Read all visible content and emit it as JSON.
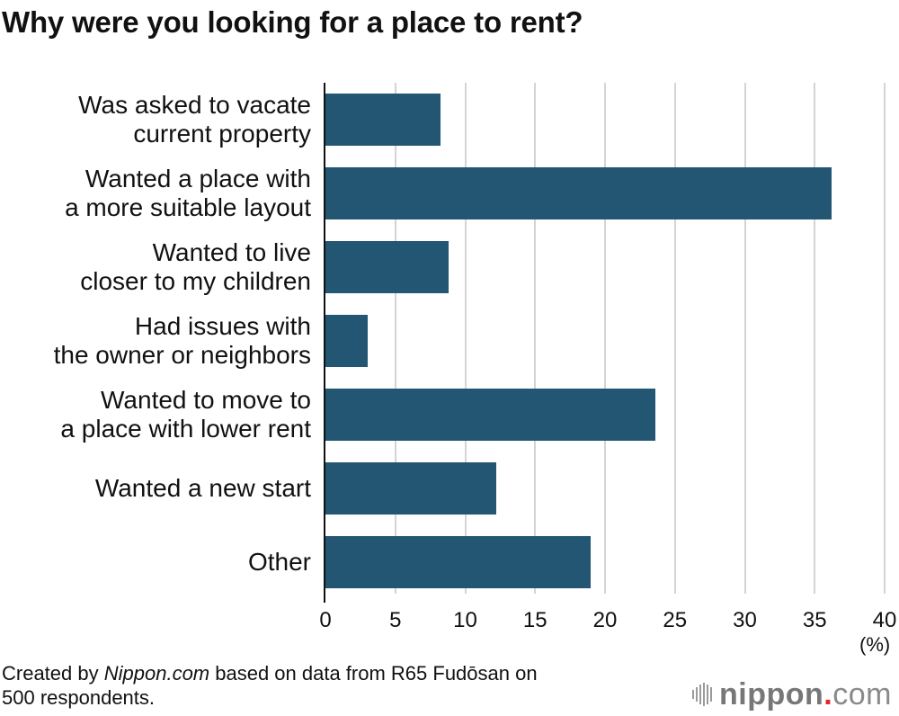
{
  "chart_data": {
    "type": "bar",
    "orientation": "horizontal",
    "title": "Why were you looking for a place to rent?",
    "categories": [
      "Was asked to vacate current property",
      "Wanted a place with a more suitable layout",
      "Wanted to live closer to my children",
      "Had issues with the owner or neighbors",
      "Wanted to move to a place with lower rent",
      "Wanted a new start",
      "Other"
    ],
    "category_lines": [
      [
        "Was asked to vacate",
        "current property"
      ],
      [
        "Wanted a place with",
        "a more suitable layout"
      ],
      [
        "Wanted to live",
        "closer to my children"
      ],
      [
        "Had issues with",
        "the owner or neighbors"
      ],
      [
        "Wanted to move to",
        "a place with lower rent"
      ],
      [
        "Wanted a new start"
      ],
      [
        "Other"
      ]
    ],
    "values": [
      8.2,
      36.2,
      8.8,
      3.0,
      23.6,
      12.2,
      19.0
    ],
    "xlabel": "(%)",
    "ylabel": "",
    "xlim": [
      0,
      40
    ],
    "xticks": [
      "0",
      "5",
      "10",
      "15",
      "20",
      "25",
      "30",
      "35",
      "40"
    ],
    "grid": true,
    "legend": null,
    "bar_color": "#235673"
  },
  "header": {
    "title": "Why were you looking for a place to rent?"
  },
  "axis": {
    "unit_label": "(%)"
  },
  "footer": {
    "source_prefix": "Created by ",
    "source_brand": "Nippon.com",
    "source_suffix": " based on data from R65 Fudōsan on",
    "source_line2": "500 respondents.",
    "logo_name": "nippon",
    "logo_dot": ".",
    "logo_tld": "com"
  },
  "colors": {
    "bar": "#235673",
    "grid": "#d4d4d4",
    "logo_dot": "#e3262b",
    "logo_text": "#777777"
  }
}
